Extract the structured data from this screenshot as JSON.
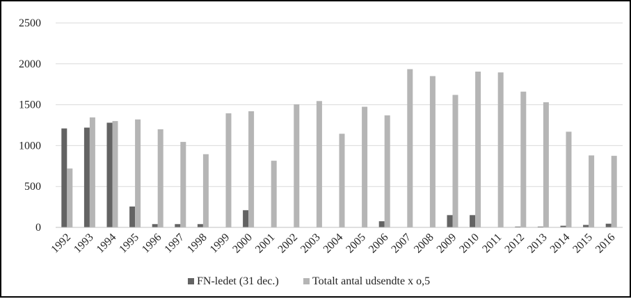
{
  "chart_data": {
    "type": "bar",
    "categories": [
      "1992",
      "1993",
      "1994",
      "1995",
      "1996",
      "1997",
      "1998",
      "1999",
      "2000",
      "2001",
      "2002",
      "2003",
      "2004",
      "2005",
      "2006",
      "2007",
      "2008",
      "2009",
      "2010",
      "2011",
      "2012",
      "2013",
      "2014",
      "2015",
      "2016"
    ],
    "series": [
      {
        "name": "FN-ledet (31 dec.)",
        "color": "#636363",
        "values": [
          1210,
          1220,
          1280,
          255,
          40,
          40,
          40,
          0,
          210,
          0,
          0,
          0,
          0,
          0,
          75,
          0,
          0,
          150,
          150,
          0,
          10,
          10,
          20,
          30,
          45
        ]
      },
      {
        "name": "Totalt antal udsendte x o,5",
        "color": "#b5b5b5",
        "values": [
          720,
          1345,
          1300,
          1320,
          1200,
          1045,
          895,
          1395,
          1420,
          815,
          1505,
          1545,
          1145,
          1475,
          1370,
          1935,
          1850,
          1620,
          1905,
          1895,
          1660,
          1530,
          1170,
          880,
          875
        ]
      }
    ],
    "yticks": [
      0,
      500,
      1000,
      1500,
      2000,
      2500
    ],
    "ylim": [
      0,
      2500
    ],
    "grid": true,
    "legend_position": "bottom"
  }
}
